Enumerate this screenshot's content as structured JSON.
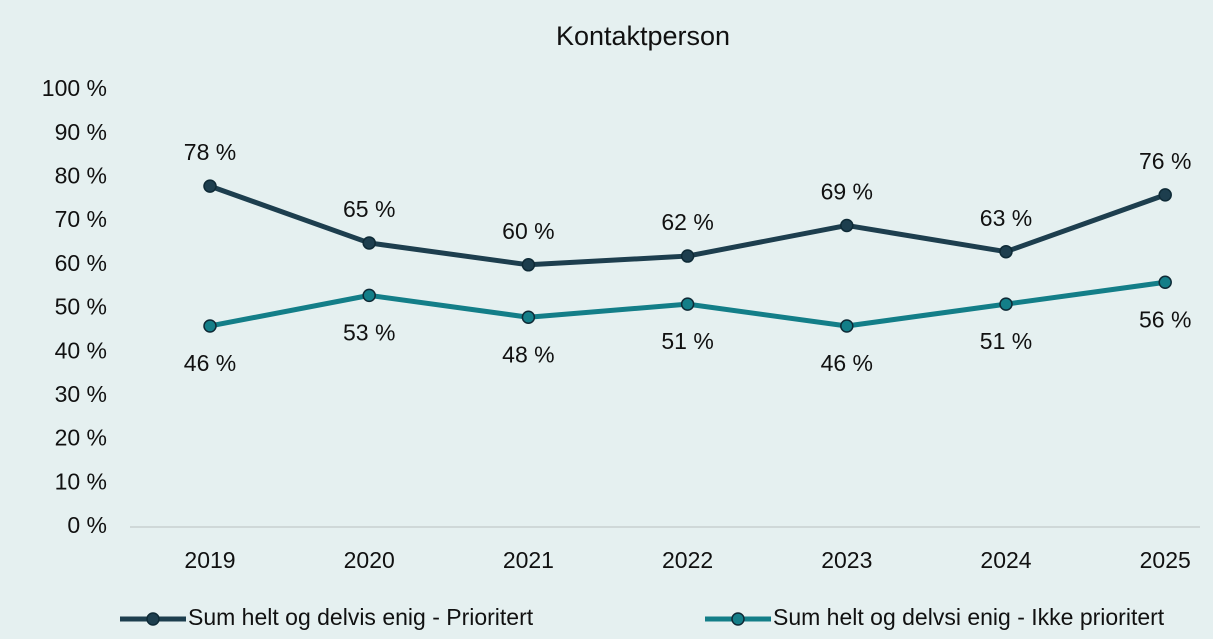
{
  "chart_data": {
    "type": "line",
    "title": "Kontaktperson",
    "categories": [
      "2019",
      "2020",
      "2021",
      "2022",
      "2023",
      "2024",
      "2025"
    ],
    "series": [
      {
        "name": "Sum helt og delvis enig - Prioritert",
        "color": "#1d3e4e",
        "values": [
          78,
          65,
          60,
          62,
          69,
          63,
          76
        ],
        "value_labels": [
          "78 %",
          "65 %",
          "60 %",
          "62 %",
          "69 %",
          "63 %",
          "76 %"
        ]
      },
      {
        "name": "Sum helt og delvsi enig - Ikke prioritert",
        "color": "#137e88",
        "values": [
          46,
          53,
          48,
          51,
          46,
          51,
          56
        ],
        "value_labels": [
          "46 %",
          "53 %",
          "48 %",
          "51 %",
          "46 %",
          "51 %",
          "56 %"
        ]
      }
    ],
    "ylim": [
      0,
      100
    ],
    "yticks": [
      {
        "value": 0,
        "label": "0 %"
      },
      {
        "value": 10,
        "label": "10 %"
      },
      {
        "value": 20,
        "label": "20 %"
      },
      {
        "value": 30,
        "label": "30 %"
      },
      {
        "value": 40,
        "label": "40 %"
      },
      {
        "value": 50,
        "label": "50 %"
      },
      {
        "value": 60,
        "label": "60 %"
      },
      {
        "value": 70,
        "label": "70 %"
      },
      {
        "value": 80,
        "label": "80 %"
      },
      {
        "value": 90,
        "label": "90 %"
      },
      {
        "value": 100,
        "label": "100 %"
      }
    ],
    "grid": false,
    "legend": "bottom"
  }
}
